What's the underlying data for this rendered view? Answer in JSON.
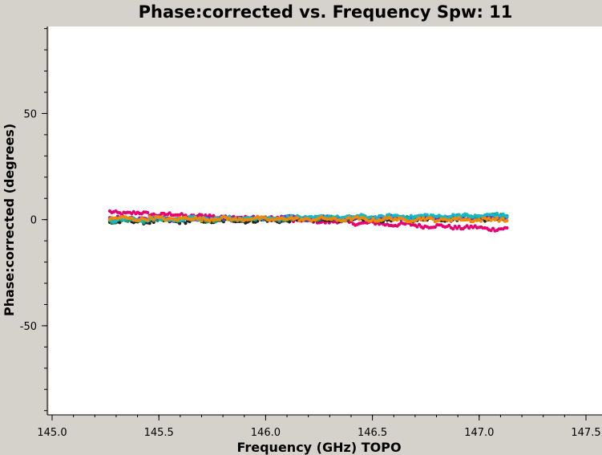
{
  "chart_data": {
    "type": "scatter",
    "title": "Phase:corrected vs. Frequency Spw: 11",
    "xlabel": "Frequency (GHz) TOPO",
    "ylabel": "Phase:corrected (degrees)",
    "xlim": [
      145.0,
      147.5
    ],
    "ylim": [
      -92,
      91
    ],
    "x_ticks": [
      145.0,
      145.5,
      146.0,
      146.5,
      147.0,
      147.5
    ],
    "x_tick_labels": [
      "145.0",
      "145.5",
      "146.0",
      "146.5",
      "147.0",
      "147.5"
    ],
    "y_ticks": [
      -50,
      0,
      50
    ],
    "y_tick_labels": [
      "-50",
      "0",
      "50"
    ],
    "x_range": [
      145.27,
      147.13
    ],
    "grid": false,
    "series": [
      {
        "name": "magenta",
        "color": "#e8006e",
        "start": 3.5,
        "end": -4.5,
        "dip": [
          146.85,
          -3.5
        ]
      },
      {
        "name": "black",
        "color": "#222222",
        "start": -1.0,
        "end": 0.5,
        "dip": null
      },
      {
        "name": "green",
        "color": "#1aa36a",
        "start": -0.5,
        "end": 1.5,
        "dip": null
      },
      {
        "name": "purple",
        "color": "#7a1fd0",
        "start": 0.5,
        "end": 1.0,
        "dip": null
      },
      {
        "name": "cyan",
        "color": "#16b8c8",
        "start": 0.0,
        "end": 2.0,
        "dip": null
      },
      {
        "name": "orange",
        "color": "#f08a00",
        "start": 0.5,
        "end": 0.0,
        "dip": null
      }
    ]
  }
}
